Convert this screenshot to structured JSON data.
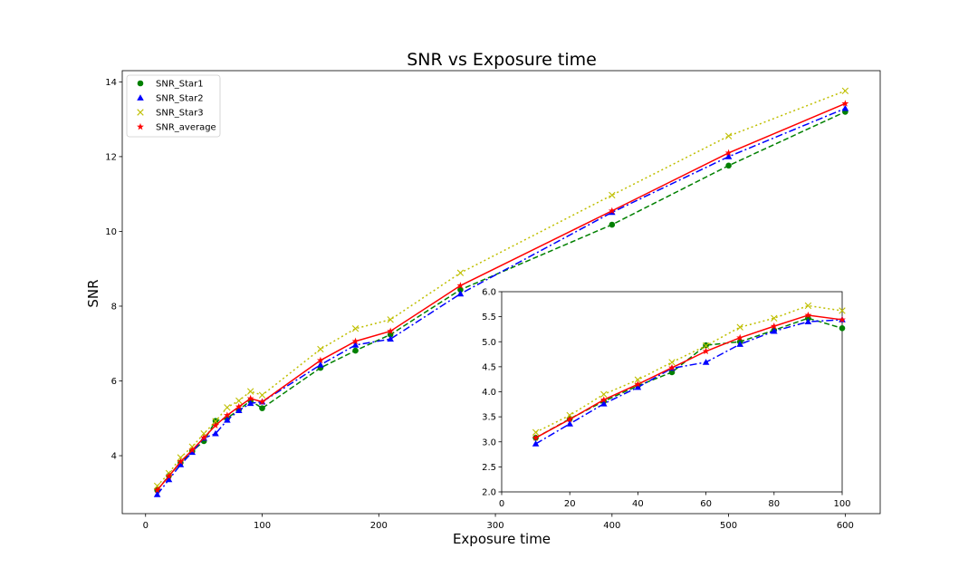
{
  "chart_data": [
    {
      "type": "line",
      "title": "SNR vs Exposure time",
      "xlabel": "Exposure time",
      "ylabel": "SNR",
      "xlim": [
        -20,
        630
      ],
      "ylim": [
        2.45,
        14.3
      ],
      "xticks": [
        0,
        100,
        200,
        300,
        400,
        500,
        600
      ],
      "yticks": [
        4,
        6,
        8,
        10,
        12,
        14
      ],
      "grid": false,
      "legend_position": "top-left",
      "x": [
        10,
        20,
        30,
        40,
        50,
        60,
        70,
        80,
        90,
        100,
        150,
        180,
        210,
        270,
        400,
        500,
        600
      ],
      "series": [
        {
          "name": "SNR_Star1",
          "color": "#008000",
          "marker": "circle",
          "line_style": "dashed",
          "values": [
            3.08,
            3.46,
            3.81,
            4.12,
            4.39,
            4.93,
            5.0,
            5.23,
            5.47,
            5.27,
            6.35,
            6.81,
            7.24,
            8.44,
            10.18,
            11.76,
            13.2
          ]
        },
        {
          "name": "SNR_Star2",
          "color": "#0000ff",
          "marker": "triangle",
          "line_style": "dashdot",
          "values": [
            2.96,
            3.36,
            3.76,
            4.09,
            4.47,
            4.59,
            4.95,
            5.21,
            5.4,
            5.44,
            6.43,
            6.96,
            7.12,
            8.33,
            10.51,
            12.0,
            13.29
          ]
        },
        {
          "name": "SNR_Star3",
          "color": "#bfbf00",
          "marker": "x",
          "line_style": "dotted",
          "values": [
            3.19,
            3.53,
            3.95,
            4.24,
            4.59,
            4.92,
            5.29,
            5.47,
            5.72,
            5.62,
            6.85,
            7.4,
            7.64,
            8.89,
            10.97,
            12.55,
            13.76
          ]
        },
        {
          "name": "SNR_average",
          "color": "#ff0000",
          "marker": "star",
          "line_style": "solid",
          "values": [
            3.08,
            3.45,
            3.84,
            4.15,
            4.48,
            4.81,
            5.08,
            5.31,
            5.53,
            5.44,
            6.55,
            7.06,
            7.33,
            8.55,
            10.55,
            12.1,
            13.42
          ]
        }
      ]
    },
    {
      "type": "line",
      "title": "",
      "xlabel": "",
      "ylabel": "",
      "xlim": [
        0,
        100
      ],
      "ylim": [
        2.0,
        6.0
      ],
      "xticks": [
        0,
        20,
        40,
        60,
        80,
        100
      ],
      "yticks": [
        2.0,
        2.5,
        3.0,
        3.5,
        4.0,
        4.5,
        5.0,
        5.5,
        6.0
      ],
      "ytick_labels": [
        "2.0",
        "2.5",
        "3.0",
        "3.5",
        "4.0",
        "4.5",
        "5.0",
        "5.5",
        "6.0"
      ],
      "grid": false,
      "x": [
        10,
        20,
        30,
        40,
        50,
        60,
        70,
        80,
        90,
        100
      ],
      "series": [
        {
          "name": "SNR_Star1",
          "color": "#008000",
          "marker": "circle",
          "line_style": "dashed",
          "values": [
            3.08,
            3.46,
            3.81,
            4.12,
            4.39,
            4.93,
            5.0,
            5.23,
            5.47,
            5.27
          ]
        },
        {
          "name": "SNR_Star2",
          "color": "#0000ff",
          "marker": "triangle",
          "line_style": "dashdot",
          "values": [
            2.96,
            3.36,
            3.76,
            4.09,
            4.47,
            4.59,
            4.95,
            5.21,
            5.4,
            5.44
          ]
        },
        {
          "name": "SNR_Star3",
          "color": "#bfbf00",
          "marker": "x",
          "line_style": "dotted",
          "values": [
            3.19,
            3.53,
            3.95,
            4.24,
            4.59,
            4.92,
            5.29,
            5.47,
            5.72,
            5.62
          ]
        },
        {
          "name": "SNR_average",
          "color": "#ff0000",
          "marker": "star",
          "line_style": "solid",
          "values": [
            3.08,
            3.45,
            3.84,
            4.15,
            4.48,
            4.81,
            5.08,
            5.31,
            5.53,
            5.44
          ]
        }
      ]
    }
  ]
}
